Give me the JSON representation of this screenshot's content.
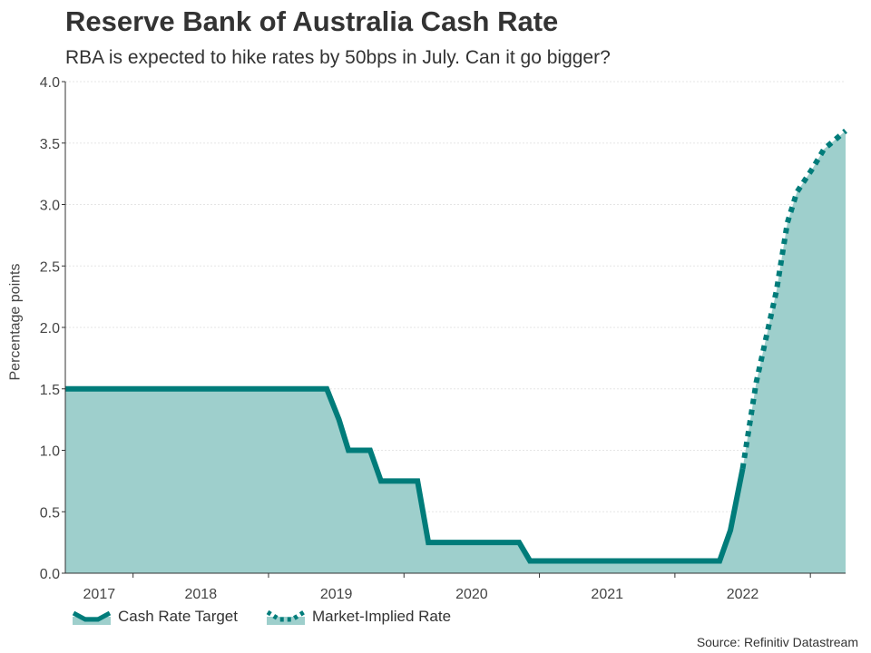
{
  "chart_data": {
    "type": "area",
    "title": "Reserve Bank of Australia Cash Rate",
    "subtitle": "RBA is expected to hike rates by 50bps in July. Can it go bigger?",
    "ylabel": "Percentage points",
    "xlabel": "",
    "ylim": [
      0,
      4.0
    ],
    "yticks": [
      "0.0",
      "0.5",
      "1.0",
      "1.5",
      "2.0",
      "2.5",
      "3.0",
      "3.5",
      "4.0"
    ],
    "xlim": [
      2016.65,
      2022.41
    ],
    "year_labels": [
      {
        "label": "2017",
        "x": 2016.9
      },
      {
        "label": "2018",
        "x": 2017.65
      },
      {
        "label": "2019",
        "x": 2018.65
      },
      {
        "label": "2020",
        "x": 2019.65
      },
      {
        "label": "2021",
        "x": 2020.65
      },
      {
        "label": "2022",
        "x": 2021.65
      }
    ],
    "year_ticks": [
      2017.15,
      2018.15,
      2019.15,
      2020.15,
      2021.15,
      2022.15
    ],
    "colors": {
      "line": "#007c7a",
      "fill": "#9ecfcc",
      "grid": "#e5e5e5"
    },
    "legend_position": "bottom-left",
    "series": [
      {
        "name": "Cash Rate Target",
        "style": "solid",
        "points": [
          [
            2016.65,
            1.5
          ],
          [
            2018.58,
            1.5
          ],
          [
            2018.67,
            1.25
          ],
          [
            2018.74,
            1.0
          ],
          [
            2018.9,
            1.0
          ],
          [
            2018.98,
            0.75
          ],
          [
            2019.25,
            0.75
          ],
          [
            2019.33,
            0.25
          ],
          [
            2020.0,
            0.25
          ],
          [
            2020.08,
            0.1
          ],
          [
            2021.48,
            0.1
          ],
          [
            2021.56,
            0.35
          ],
          [
            2021.65,
            0.85
          ]
        ]
      },
      {
        "name": "Market-Implied Rate",
        "style": "dotted",
        "points": [
          [
            2021.65,
            0.85
          ],
          [
            2021.75,
            1.55
          ],
          [
            2021.9,
            2.3
          ],
          [
            2021.98,
            2.85
          ],
          [
            2022.05,
            3.1
          ],
          [
            2022.17,
            3.3
          ],
          [
            2022.25,
            3.45
          ],
          [
            2022.41,
            3.6
          ]
        ]
      }
    ]
  },
  "source": "Source: Refinitiv Datastream"
}
